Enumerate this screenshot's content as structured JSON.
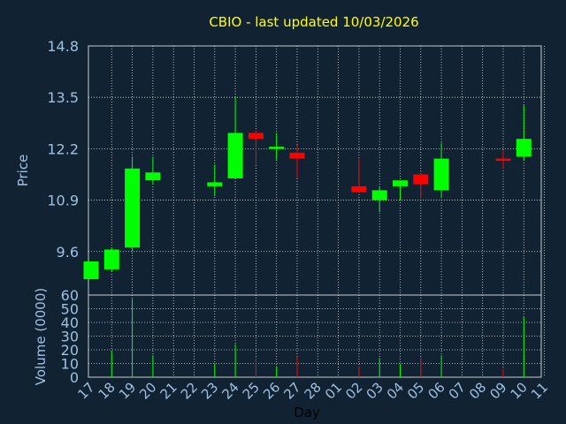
{
  "chart_data": {
    "type": "candlestick",
    "title": "CBIO - last updated 10/03/2026",
    "xlabel": "Day",
    "price_panel": {
      "ylabel": "Price",
      "ylim": [
        8.5,
        14.8
      ],
      "yticks": [
        "14.8",
        "13.5",
        "12.2",
        "10.9",
        "9.6"
      ]
    },
    "volume_panel": {
      "ylabel": "Volume (0000)",
      "ylim": [
        0,
        60
      ],
      "yticks": [
        "60",
        "50",
        "40",
        "30",
        "20",
        "10",
        "0"
      ]
    },
    "x_tick_labels": [
      "17",
      "18",
      "19",
      "20",
      "21",
      "22",
      "23",
      "24",
      "25",
      "26",
      "27",
      "28",
      "01",
      "02",
      "03",
      "04",
      "05",
      "06",
      "07",
      "08",
      "09",
      "10",
      "11"
    ],
    "candles": [
      {
        "day": "17",
        "open": 8.9,
        "close": 9.35,
        "high": 9.35,
        "low": 8.9,
        "volume": 0
      },
      {
        "day": "18",
        "open": 9.15,
        "close": 9.65,
        "high": 9.7,
        "low": 9.1,
        "volume": 19
      },
      {
        "day": "19",
        "open": 9.7,
        "close": 11.7,
        "high": 12.0,
        "low": 9.6,
        "volume": 57
      },
      {
        "day": "20",
        "open": 11.4,
        "close": 11.6,
        "high": 12.0,
        "low": 11.3,
        "volume": 16
      },
      {
        "day": "23",
        "open": 11.25,
        "close": 11.35,
        "high": 11.8,
        "low": 11.0,
        "volume": 10
      },
      {
        "day": "24",
        "open": 11.45,
        "close": 12.6,
        "high": 13.5,
        "low": 11.45,
        "volume": 24
      },
      {
        "day": "25",
        "open": 12.6,
        "close": 12.45,
        "high": 12.65,
        "low": 11.8,
        "volume": 14
      },
      {
        "day": "26",
        "open": 12.2,
        "close": 12.25,
        "high": 12.6,
        "low": 11.9,
        "volume": 8
      },
      {
        "day": "27",
        "open": 12.1,
        "close": 11.95,
        "high": 12.3,
        "low": 11.45,
        "volume": 15
      },
      {
        "day": "02",
        "open": 11.25,
        "close": 11.1,
        "high": 11.95,
        "low": 11.1,
        "volume": 8
      },
      {
        "day": "03",
        "open": 10.9,
        "close": 11.15,
        "high": 11.25,
        "low": 10.6,
        "volume": 14
      },
      {
        "day": "04",
        "open": 11.25,
        "close": 11.4,
        "high": 11.4,
        "low": 10.9,
        "volume": 10
      },
      {
        "day": "05",
        "open": 11.55,
        "close": 11.3,
        "high": 11.6,
        "low": 10.95,
        "volume": 14
      },
      {
        "day": "06",
        "open": 11.15,
        "close": 11.95,
        "high": 12.35,
        "low": 10.95,
        "volume": 16
      },
      {
        "day": "09",
        "open": 11.95,
        "close": 11.9,
        "high": 12.15,
        "low": 11.7,
        "volume": 6
      },
      {
        "day": "10",
        "open": 12.0,
        "close": 12.45,
        "high": 13.3,
        "low": 11.9,
        "volume": 44
      }
    ],
    "colors": {
      "background": "#112233",
      "plot_border": "#cccccc",
      "grid": "#ffffff",
      "up": "#00ff00",
      "down": "#ff0000",
      "title": "#ffff00",
      "axis_text": "#a0c0e0"
    }
  }
}
